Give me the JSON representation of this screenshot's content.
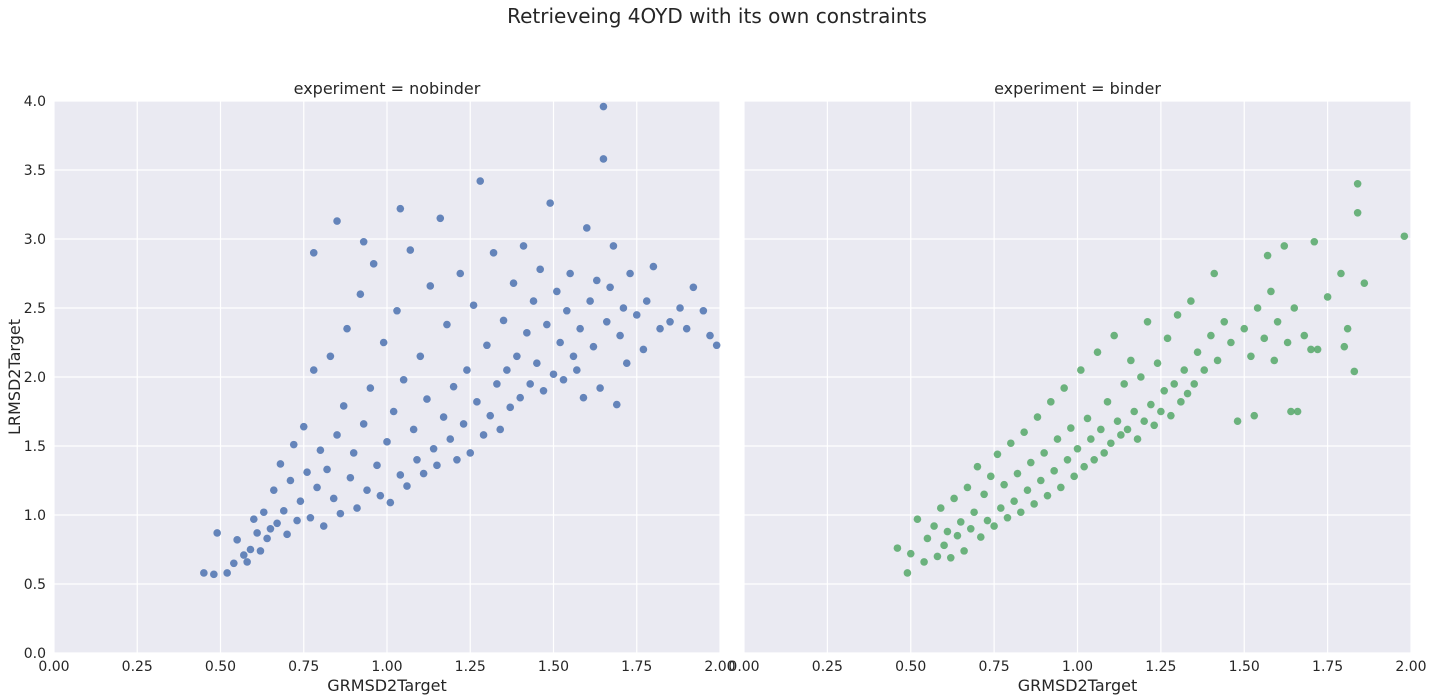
{
  "figure": {
    "title": "Retrieveing 4OYD with its own constraints"
  },
  "chart_data": [
    {
      "type": "scatter",
      "title": "experiment = nobinder",
      "xlabel": "GRMSD2Target",
      "ylabel": "LRMSD2Target",
      "xlim": [
        0.0,
        2.0
      ],
      "ylim": [
        0.0,
        4.0
      ],
      "xticks": [
        "0.00",
        "0.25",
        "0.50",
        "0.75",
        "1.00",
        "1.25",
        "1.50",
        "1.75",
        "2.00"
      ],
      "yticks": [
        "0.0",
        "0.5",
        "1.0",
        "1.5",
        "2.0",
        "2.5",
        "3.0",
        "3.5",
        "4.0"
      ],
      "grid": true,
      "color": "#4c72b0",
      "points": [
        [
          0.45,
          0.58
        ],
        [
          0.48,
          0.57
        ],
        [
          0.49,
          0.87
        ],
        [
          0.52,
          0.58
        ],
        [
          0.54,
          0.65
        ],
        [
          0.55,
          0.82
        ],
        [
          0.57,
          0.71
        ],
        [
          0.58,
          0.66
        ],
        [
          0.59,
          0.75
        ],
        [
          0.6,
          0.97
        ],
        [
          0.61,
          0.87
        ],
        [
          0.62,
          0.74
        ],
        [
          0.63,
          1.02
        ],
        [
          0.64,
          0.83
        ],
        [
          0.65,
          0.9
        ],
        [
          0.66,
          1.18
        ],
        [
          0.67,
          0.94
        ],
        [
          0.68,
          1.37
        ],
        [
          0.69,
          1.03
        ],
        [
          0.7,
          0.86
        ],
        [
          0.71,
          1.25
        ],
        [
          0.72,
          1.51
        ],
        [
          0.73,
          0.96
        ],
        [
          0.74,
          1.1
        ],
        [
          0.75,
          1.64
        ],
        [
          0.76,
          1.31
        ],
        [
          0.77,
          0.98
        ],
        [
          0.78,
          2.05
        ],
        [
          0.79,
          1.2
        ],
        [
          0.8,
          1.47
        ],
        [
          0.81,
          0.92
        ],
        [
          0.82,
          1.33
        ],
        [
          0.83,
          2.15
        ],
        [
          0.84,
          1.12
        ],
        [
          0.85,
          1.58
        ],
        [
          0.86,
          1.01
        ],
        [
          0.87,
          1.79
        ],
        [
          0.88,
          2.35
        ],
        [
          0.89,
          1.27
        ],
        [
          0.9,
          1.45
        ],
        [
          0.91,
          1.05
        ],
        [
          0.92,
          2.6
        ],
        [
          0.93,
          1.66
        ],
        [
          0.94,
          1.18
        ],
        [
          0.95,
          1.92
        ],
        [
          0.96,
          2.82
        ],
        [
          0.97,
          1.36
        ],
        [
          0.98,
          1.14
        ],
        [
          0.99,
          2.25
        ],
        [
          1.0,
          1.53
        ],
        [
          1.01,
          1.09
        ],
        [
          1.02,
          1.75
        ],
        [
          1.03,
          2.48
        ],
        [
          1.04,
          1.29
        ],
        [
          1.05,
          1.98
        ],
        [
          1.06,
          1.21
        ],
        [
          1.07,
          2.92
        ],
        [
          1.08,
          1.62
        ],
        [
          1.09,
          1.4
        ],
        [
          1.1,
          2.15
        ],
        [
          1.11,
          1.3
        ],
        [
          1.12,
          1.84
        ],
        [
          1.13,
          2.66
        ],
        [
          1.14,
          1.48
        ],
        [
          1.15,
          1.36
        ],
        [
          1.16,
          3.15
        ],
        [
          1.17,
          1.71
        ],
        [
          1.18,
          2.38
        ],
        [
          1.19,
          1.55
        ],
        [
          1.2,
          1.93
        ],
        [
          1.21,
          1.4
        ],
        [
          1.22,
          2.75
        ],
        [
          1.23,
          1.66
        ],
        [
          1.24,
          2.05
        ],
        [
          1.25,
          1.45
        ],
        [
          1.26,
          2.52
        ],
        [
          1.27,
          1.82
        ],
        [
          1.28,
          3.42
        ],
        [
          1.29,
          1.58
        ],
        [
          1.3,
          2.23
        ],
        [
          1.31,
          1.72
        ],
        [
          1.32,
          2.9
        ],
        [
          1.33,
          1.95
        ],
        [
          1.34,
          1.62
        ],
        [
          1.35,
          2.41
        ],
        [
          1.36,
          2.05
        ],
        [
          1.37,
          1.78
        ],
        [
          1.38,
          2.68
        ],
        [
          1.39,
          2.15
        ],
        [
          1.4,
          1.85
        ],
        [
          1.41,
          2.95
        ],
        [
          1.42,
          2.32
        ],
        [
          1.43,
          1.95
        ],
        [
          1.44,
          2.55
        ],
        [
          1.45,
          2.1
        ],
        [
          1.46,
          2.78
        ],
        [
          1.47,
          1.9
        ],
        [
          1.48,
          2.38
        ],
        [
          1.49,
          3.26
        ],
        [
          1.5,
          2.02
        ],
        [
          1.51,
          2.62
        ],
        [
          1.52,
          2.25
        ],
        [
          1.53,
          1.98
        ],
        [
          1.54,
          2.48
        ],
        [
          1.55,
          2.75
        ],
        [
          1.56,
          2.15
        ],
        [
          1.57,
          2.05
        ],
        [
          1.58,
          2.35
        ],
        [
          1.59,
          1.85
        ],
        [
          1.6,
          3.08
        ],
        [
          1.61,
          2.55
        ],
        [
          1.62,
          2.22
        ],
        [
          1.63,
          2.7
        ],
        [
          1.64,
          1.92
        ],
        [
          1.65,
          3.58
        ],
        [
          1.65,
          3.96
        ],
        [
          1.66,
          2.4
        ],
        [
          1.67,
          2.65
        ],
        [
          1.68,
          2.95
        ],
        [
          1.69,
          1.8
        ],
        [
          1.7,
          2.3
        ],
        [
          1.71,
          2.5
        ],
        [
          1.72,
          2.1
        ],
        [
          1.73,
          2.75
        ],
        [
          1.75,
          2.45
        ],
        [
          1.77,
          2.2
        ],
        [
          1.78,
          2.55
        ],
        [
          1.8,
          2.8
        ],
        [
          1.82,
          2.35
        ],
        [
          1.85,
          2.4
        ],
        [
          1.88,
          2.5
        ],
        [
          1.9,
          2.35
        ],
        [
          1.92,
          2.65
        ],
        [
          1.95,
          2.48
        ],
        [
          1.97,
          2.3
        ],
        [
          1.99,
          2.23
        ],
        [
          0.85,
          3.13
        ],
        [
          0.78,
          2.9
        ],
        [
          1.04,
          3.22
        ],
        [
          0.93,
          2.98
        ]
      ]
    },
    {
      "type": "scatter",
      "title": "experiment = binder",
      "xlabel": "GRMSD2Target",
      "ylabel": "",
      "xlim": [
        0.0,
        2.0
      ],
      "ylim": [
        0.0,
        4.0
      ],
      "xticks": [
        "0.00",
        "0.25",
        "0.50",
        "0.75",
        "1.00",
        "1.25",
        "1.50",
        "1.75",
        "2.00"
      ],
      "yticks": [],
      "grid": true,
      "color": "#55a868",
      "points": [
        [
          0.46,
          0.76
        ],
        [
          0.49,
          0.58
        ],
        [
          0.5,
          0.72
        ],
        [
          0.52,
          0.97
        ],
        [
          0.54,
          0.66
        ],
        [
          0.55,
          0.83
        ],
        [
          0.57,
          0.92
        ],
        [
          0.58,
          0.7
        ],
        [
          0.59,
          1.05
        ],
        [
          0.6,
          0.78
        ],
        [
          0.61,
          0.88
        ],
        [
          0.62,
          0.69
        ],
        [
          0.63,
          1.12
        ],
        [
          0.64,
          0.85
        ],
        [
          0.65,
          0.95
        ],
        [
          0.66,
          0.74
        ],
        [
          0.67,
          1.2
        ],
        [
          0.68,
          0.9
        ],
        [
          0.69,
          1.02
        ],
        [
          0.7,
          1.35
        ],
        [
          0.71,
          0.84
        ],
        [
          0.72,
          1.15
        ],
        [
          0.73,
          0.96
        ],
        [
          0.74,
          1.28
        ],
        [
          0.75,
          0.92
        ],
        [
          0.76,
          1.44
        ],
        [
          0.77,
          1.05
        ],
        [
          0.78,
          1.22
        ],
        [
          0.79,
          0.98
        ],
        [
          0.8,
          1.52
        ],
        [
          0.81,
          1.1
        ],
        [
          0.82,
          1.3
        ],
        [
          0.83,
          1.02
        ],
        [
          0.84,
          1.6
        ],
        [
          0.85,
          1.18
        ],
        [
          0.86,
          1.38
        ],
        [
          0.87,
          1.08
        ],
        [
          0.88,
          1.71
        ],
        [
          0.89,
          1.25
        ],
        [
          0.9,
          1.45
        ],
        [
          0.91,
          1.14
        ],
        [
          0.92,
          1.82
        ],
        [
          0.93,
          1.32
        ],
        [
          0.94,
          1.55
        ],
        [
          0.95,
          1.2
        ],
        [
          0.96,
          1.92
        ],
        [
          0.97,
          1.4
        ],
        [
          0.98,
          1.63
        ],
        [
          0.99,
          1.28
        ],
        [
          1.0,
          1.48
        ],
        [
          1.01,
          2.05
        ],
        [
          1.02,
          1.35
        ],
        [
          1.03,
          1.7
        ],
        [
          1.04,
          1.55
        ],
        [
          1.05,
          1.4
        ],
        [
          1.06,
          2.18
        ],
        [
          1.07,
          1.62
        ],
        [
          1.08,
          1.45
        ],
        [
          1.09,
          1.82
        ],
        [
          1.1,
          1.52
        ],
        [
          1.11,
          2.3
        ],
        [
          1.12,
          1.68
        ],
        [
          1.13,
          1.58
        ],
        [
          1.14,
          1.95
        ],
        [
          1.15,
          1.62
        ],
        [
          1.16,
          2.12
        ],
        [
          1.17,
          1.75
        ],
        [
          1.18,
          1.55
        ],
        [
          1.19,
          2.0
        ],
        [
          1.2,
          1.68
        ],
        [
          1.21,
          2.4
        ],
        [
          1.22,
          1.8
        ],
        [
          1.23,
          1.65
        ],
        [
          1.24,
          2.1
        ],
        [
          1.25,
          1.75
        ],
        [
          1.26,
          1.9
        ],
        [
          1.27,
          2.28
        ],
        [
          1.28,
          1.72
        ],
        [
          1.29,
          1.95
        ],
        [
          1.3,
          2.45
        ],
        [
          1.31,
          1.82
        ],
        [
          1.32,
          2.05
        ],
        [
          1.33,
          1.88
        ],
        [
          1.34,
          2.55
        ],
        [
          1.35,
          1.95
        ],
        [
          1.36,
          2.18
        ],
        [
          1.38,
          2.05
        ],
        [
          1.4,
          2.3
        ],
        [
          1.42,
          2.12
        ],
        [
          1.44,
          2.4
        ],
        [
          1.46,
          2.25
        ],
        [
          1.48,
          1.68
        ],
        [
          1.5,
          2.35
        ],
        [
          1.52,
          2.15
        ],
        [
          1.54,
          2.5
        ],
        [
          1.56,
          2.28
        ],
        [
          1.58,
          2.62
        ],
        [
          1.59,
          2.12
        ],
        [
          1.6,
          2.4
        ],
        [
          1.62,
          2.95
        ],
        [
          1.63,
          2.25
        ],
        [
          1.64,
          1.75
        ],
        [
          1.65,
          2.5
        ],
        [
          1.66,
          1.75
        ],
        [
          1.68,
          2.3
        ],
        [
          1.7,
          2.2
        ],
        [
          1.71,
          2.98
        ],
        [
          1.72,
          2.2
        ],
        [
          1.75,
          2.58
        ],
        [
          1.79,
          2.75
        ],
        [
          1.8,
          2.22
        ],
        [
          1.81,
          2.35
        ],
        [
          1.83,
          2.04
        ],
        [
          1.84,
          3.4
        ],
        [
          1.84,
          3.19
        ],
        [
          1.86,
          2.68
        ],
        [
          1.98,
          3.02
        ],
        [
          1.57,
          2.88
        ],
        [
          1.41,
          2.75
        ],
        [
          1.53,
          1.72
        ]
      ]
    }
  ]
}
